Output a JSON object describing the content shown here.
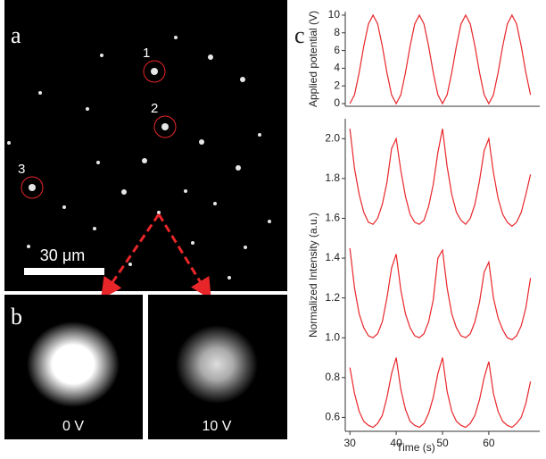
{
  "panels": {
    "a": {
      "label": "a",
      "spot_labels": [
        "1",
        "2",
        "3"
      ],
      "scale_bar": "30 μm"
    },
    "b": {
      "label": "b",
      "images": [
        "0 V",
        "10 V"
      ]
    },
    "c": {
      "label": "c"
    }
  },
  "chart_data": [
    {
      "type": "line",
      "ylabel": "Applied potential (V)",
      "x": [
        30,
        31,
        32,
        33,
        34,
        35,
        36,
        37,
        38,
        39,
        40,
        41,
        42,
        43,
        44,
        45,
        46,
        47,
        48,
        49,
        50,
        51,
        52,
        53,
        54,
        55,
        56,
        57,
        58,
        59,
        60,
        61,
        62,
        63,
        64,
        65,
        66,
        67,
        68,
        69
      ],
      "series": [
        {
          "color": "#e8262a",
          "values": [
            0,
            1,
            3.5,
            6.5,
            9,
            10,
            9,
            6.5,
            3.5,
            1,
            0,
            1,
            3.5,
            6.5,
            9,
            10,
            9,
            6.5,
            3.5,
            1,
            0,
            1,
            3.5,
            6.5,
            9,
            10,
            9,
            6.5,
            3.5,
            1,
            0,
            1,
            3.5,
            6.5,
            9,
            10,
            9,
            6.5,
            3.5,
            1
          ]
        }
      ],
      "xlim": [
        29,
        71
      ],
      "ylim": [
        -0.3,
        10.4
      ],
      "yticks": [
        0,
        2,
        4,
        6,
        8,
        10
      ]
    },
    {
      "type": "line",
      "xlabel": "Time (s)",
      "ylabel": "Normalized Intensity (a.u.)",
      "x": [
        30,
        31,
        32,
        33,
        34,
        35,
        36,
        37,
        38,
        39,
        40,
        41,
        42,
        43,
        44,
        45,
        46,
        47,
        48,
        49,
        50,
        51,
        52,
        53,
        54,
        55,
        56,
        57,
        58,
        59,
        60,
        61,
        62,
        63,
        64,
        65,
        66,
        67,
        68,
        69
      ],
      "series": [
        {
          "color": "#e8262a",
          "values": [
            2.05,
            1.85,
            1.72,
            1.63,
            1.58,
            1.57,
            1.6,
            1.67,
            1.78,
            1.95,
            2.0,
            1.84,
            1.71,
            1.62,
            1.58,
            1.57,
            1.59,
            1.66,
            1.77,
            1.93,
            2.05,
            1.86,
            1.72,
            1.63,
            1.59,
            1.57,
            1.6,
            1.67,
            1.79,
            1.94,
            2.0,
            1.83,
            1.7,
            1.62,
            1.58,
            1.56,
            1.58,
            1.63,
            1.72,
            1.82
          ]
        },
        {
          "color": "#e8262a",
          "values": [
            1.45,
            1.25,
            1.12,
            1.05,
            1.01,
            1.0,
            1.02,
            1.08,
            1.2,
            1.35,
            1.42,
            1.24,
            1.12,
            1.05,
            1.01,
            1.0,
            1.02,
            1.08,
            1.19,
            1.4,
            1.44,
            1.25,
            1.12,
            1.05,
            1.01,
            1.0,
            1.02,
            1.08,
            1.18,
            1.33,
            1.38,
            1.2,
            1.1,
            1.04,
            1.0,
            0.99,
            1.01,
            1.06,
            1.15,
            1.3
          ]
        },
        {
          "color": "#e8262a",
          "values": [
            0.85,
            0.72,
            0.63,
            0.58,
            0.56,
            0.55,
            0.57,
            0.61,
            0.7,
            0.82,
            0.9,
            0.74,
            0.64,
            0.58,
            0.56,
            0.55,
            0.57,
            0.62,
            0.7,
            0.82,
            0.9,
            0.73,
            0.63,
            0.58,
            0.56,
            0.55,
            0.57,
            0.61,
            0.69,
            0.8,
            0.88,
            0.72,
            0.63,
            0.58,
            0.56,
            0.55,
            0.57,
            0.6,
            0.67,
            0.78
          ]
        }
      ],
      "xlim": [
        29,
        71
      ],
      "ylim": [
        0.53,
        2.1
      ],
      "xticks": [
        30,
        40,
        50,
        60
      ],
      "yticks": [
        {
          "value": 0.6,
          "label": "0.6"
        },
        {
          "value": 0.8,
          "label": "0.8"
        },
        {
          "value": 1.0,
          "label": "1.0"
        },
        {
          "value": 1.2,
          "label": "1.2"
        },
        {
          "value": 1.4,
          "label": "1.4"
        },
        {
          "value": 1.6,
          "label": "1.6"
        },
        {
          "value": 1.8,
          "label": "1.8"
        },
        {
          "value": 2.0,
          "label": "2.0"
        }
      ]
    }
  ]
}
